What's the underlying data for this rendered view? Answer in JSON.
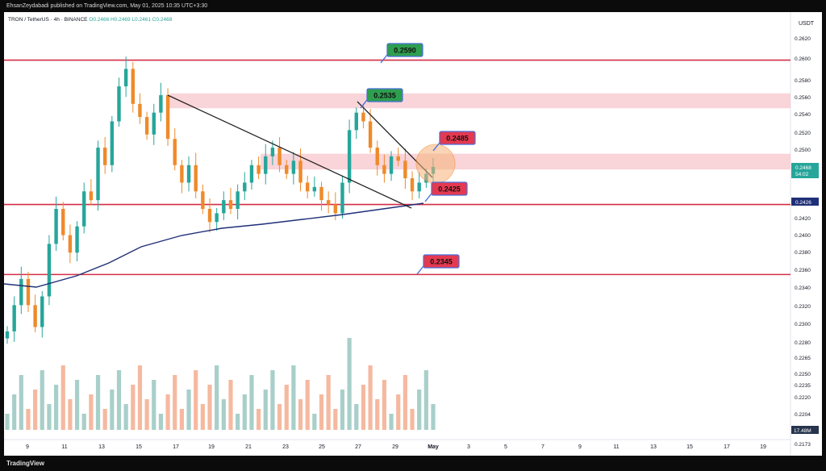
{
  "header": {
    "publisher": "EhsanZeydabadi published on TradingView.com, May 01, 2025 10:35 UTC+3:30"
  },
  "legend": {
    "symbol": "TRON / TetherUS · 4h · BINANCE",
    "ohlc": "O0.2466 H0.2469 L0.2461 C0.2468"
  },
  "footer": {
    "brand": "TradingView"
  },
  "chart_data": {
    "type": "candlestick",
    "currency": "USDT",
    "y_ticks": [
      "0.2620",
      "0.2600",
      "0.2580",
      "0.2560",
      "0.2540",
      "0.2520",
      "0.2500",
      "0.2480",
      "0.2440",
      "0.2420",
      "0.2400",
      "0.2380",
      "0.2360",
      "0.2340",
      "0.2320",
      "0.2300",
      "0.2280",
      "0.2265",
      "0.2250",
      "0.2235",
      "0.2220",
      "0.2204",
      "0.2188",
      "0.2173"
    ],
    "x_ticks": [
      "9",
      "11",
      "13",
      "15",
      "17",
      "19",
      "21",
      "23",
      "25",
      "27",
      "29",
      "May",
      "3",
      "5",
      "7",
      "9",
      "11",
      "13",
      "15",
      "17",
      "19"
    ],
    "price_labels": {
      "last": "0.2468",
      "countdown": "54:02",
      "ma": "0.2426",
      "volume": "17.48M"
    },
    "levels": [
      {
        "label": "0.2590",
        "price": 0.259,
        "color": "#2e9e4f"
      },
      {
        "label": "0.2535",
        "price": 0.2535,
        "color": "#2e9e4f"
      },
      {
        "label": "0.2485",
        "price": 0.2485,
        "color": "#e53950"
      },
      {
        "label": "0.2425",
        "price": 0.2425,
        "color": "#e53950"
      },
      {
        "label": "0.2345",
        "price": 0.2345,
        "color": "#e53950"
      }
    ],
    "horizontal_lines": [
      0.259,
      0.2425,
      0.2345
    ],
    "supply_zones": [
      [
        0.2535,
        0.2552
      ],
      [
        0.2465,
        0.2483
      ]
    ],
    "colors": {
      "up": "#26a69a",
      "down": "#ef8a2a",
      "ma": "#1f2f77",
      "line": "#d32f45",
      "vol_up": "#a8cfc9",
      "vol_down": "#f5b9a0"
    },
    "close_path": [
      0.228,
      0.231,
      0.234,
      0.231,
      0.2285,
      0.232,
      0.238,
      0.242,
      0.239,
      0.237,
      0.24,
      0.244,
      0.243,
      0.249,
      0.247,
      0.252,
      0.256,
      0.258,
      0.254,
      0.2525,
      0.2505,
      0.253,
      0.255,
      0.25,
      0.247,
      0.245,
      0.247,
      0.244,
      0.242,
      0.2405,
      0.2415,
      0.243,
      0.242,
      0.244,
      0.245,
      0.247,
      0.246,
      0.248,
      0.249,
      0.247,
      0.246,
      0.2475,
      0.245,
      0.244,
      0.2445,
      0.243,
      0.2425,
      0.2415,
      0.245,
      0.251,
      0.253,
      0.252,
      0.249,
      0.247,
      0.246,
      0.248,
      0.2475,
      0.2455,
      0.244,
      0.245,
      0.246,
      0.2468
    ]
  }
}
